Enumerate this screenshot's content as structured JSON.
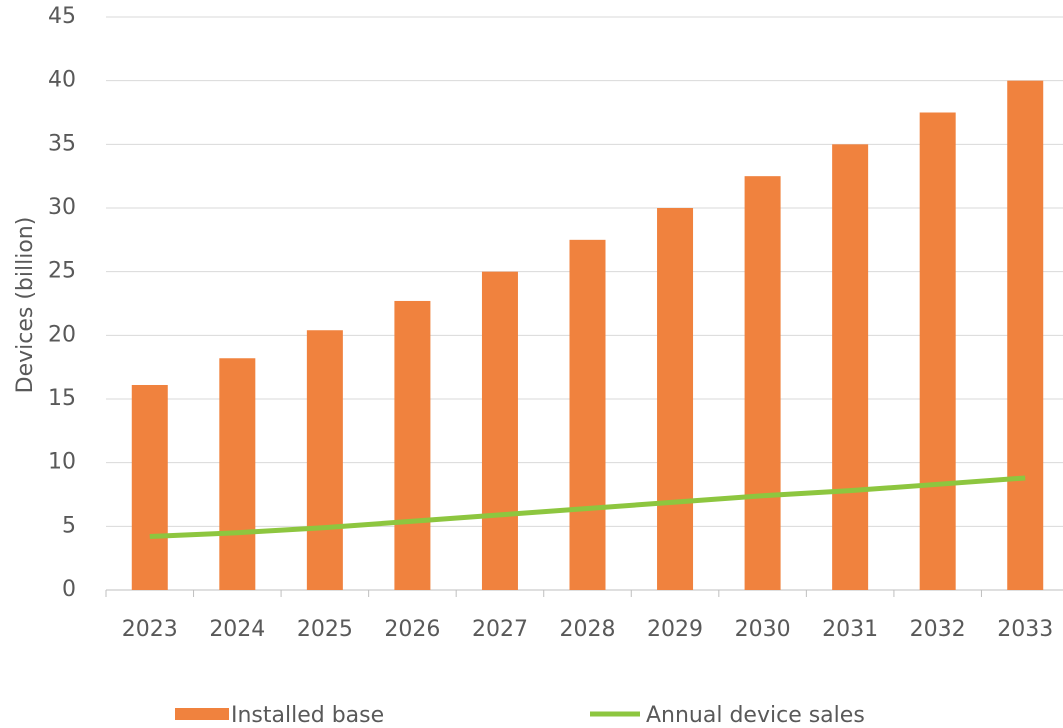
{
  "chart_data": {
    "type": "bar",
    "y_label": "Devices (billion)",
    "categories": [
      "2023",
      "2024",
      "2025",
      "2026",
      "2027",
      "2028",
      "2029",
      "2030",
      "2031",
      "2032",
      "2033"
    ],
    "series": [
      {
        "name": "Installed base",
        "type": "bar",
        "color": "#f0823e",
        "values": [
          16.1,
          18.2,
          20.4,
          22.7,
          25,
          27.5,
          30,
          32.5,
          35,
          37.5,
          40
        ]
      },
      {
        "name": "Annual device sales",
        "type": "line",
        "color": "#8dc63f",
        "values": [
          4.2,
          4.5,
          4.9,
          5.4,
          5.9,
          6.4,
          6.9,
          7.4,
          7.8,
          8.3,
          8.8
        ]
      }
    ],
    "ylim": [
      0,
      45
    ],
    "yticks": [
      0,
      5,
      10,
      15,
      20,
      25,
      30,
      35,
      40,
      45
    ],
    "grid": true,
    "legend": "bottom"
  }
}
